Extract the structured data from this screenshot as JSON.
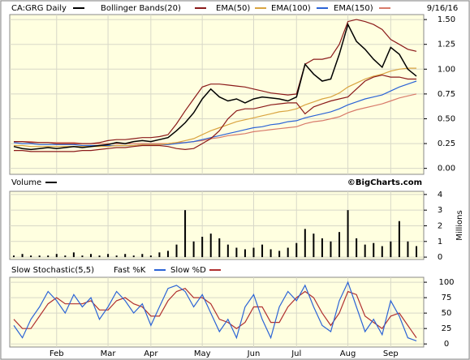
{
  "chart_data": [
    {
      "type": "line",
      "title": "CA:GRG Daily",
      "date": "9/16/16",
      "ylim": [
        -0.06,
        1.55
      ],
      "yticks": [
        {
          "value": 0,
          "label": "0.00"
        },
        {
          "value": 0.25,
          "label": "0.25"
        },
        {
          "value": 0.5,
          "label": "0.50"
        },
        {
          "value": 0.75,
          "label": "0.75"
        },
        {
          "value": 1,
          "label": "1.00"
        },
        {
          "value": 1.25,
          "label": "1.25"
        },
        {
          "value": 1.5,
          "label": "1.50"
        }
      ],
      "grid": true,
      "series": [
        {
          "name": "CA:GRG Daily",
          "color": "#000000",
          "values": [
            0.22,
            0.2,
            0.19,
            0.2,
            0.21,
            0.2,
            0.21,
            0.22,
            0.21,
            0.22,
            0.23,
            0.24,
            0.26,
            0.25,
            0.27,
            0.28,
            0.27,
            0.29,
            0.31,
            0.38,
            0.46,
            0.56,
            0.7,
            0.8,
            0.72,
            0.68,
            0.7,
            0.66,
            0.7,
            0.72,
            0.71,
            0.7,
            0.68,
            0.72,
            1.05,
            0.95,
            0.88,
            0.9,
            1.15,
            1.45,
            1.28,
            1.2,
            1.1,
            1.02,
            1.22,
            1.15,
            1.0,
            0.93
          ]
        },
        {
          "name": "Bollinger Bands(20)",
          "color": "#8b1a1a",
          "values": [
            0.27,
            0.27,
            0.26,
            0.26,
            0.26,
            0.25,
            0.25,
            0.25,
            0.25,
            0.25,
            0.26,
            0.28,
            0.29,
            0.29,
            0.3,
            0.31,
            0.31,
            0.32,
            0.34,
            0.45,
            0.58,
            0.7,
            0.82,
            0.85,
            0.85,
            0.84,
            0.83,
            0.82,
            0.8,
            0.78,
            0.76,
            0.75,
            0.74,
            0.75,
            1.05,
            1.1,
            1.1,
            1.12,
            1.25,
            1.48,
            1.5,
            1.48,
            1.45,
            1.4,
            1.3,
            1.25,
            1.2,
            1.18
          ],
          "lower_values": [
            0.18,
            0.18,
            0.17,
            0.17,
            0.17,
            0.17,
            0.17,
            0.17,
            0.18,
            0.18,
            0.19,
            0.2,
            0.21,
            0.21,
            0.22,
            0.23,
            0.23,
            0.23,
            0.22,
            0.2,
            0.19,
            0.2,
            0.25,
            0.3,
            0.38,
            0.5,
            0.58,
            0.6,
            0.6,
            0.62,
            0.64,
            0.65,
            0.66,
            0.66,
            0.55,
            0.62,
            0.65,
            0.68,
            0.7,
            0.72,
            0.8,
            0.88,
            0.92,
            0.94,
            0.92,
            0.92,
            0.9,
            0.9
          ]
        },
        {
          "name": "EMA(50)",
          "color": "#d9a440",
          "values": [
            0.23,
            0.23,
            0.22,
            0.22,
            0.22,
            0.22,
            0.22,
            0.22,
            0.22,
            0.22,
            0.22,
            0.22,
            0.23,
            0.23,
            0.23,
            0.24,
            0.24,
            0.24,
            0.25,
            0.26,
            0.28,
            0.3,
            0.34,
            0.38,
            0.41,
            0.44,
            0.47,
            0.49,
            0.51,
            0.53,
            0.55,
            0.57,
            0.58,
            0.6,
            0.64,
            0.67,
            0.7,
            0.72,
            0.76,
            0.82,
            0.86,
            0.9,
            0.93,
            0.95,
            0.98,
            1.0,
            1.01,
            1.01
          ]
        },
        {
          "name": "EMA(100)",
          "color": "#2b63d6",
          "values": [
            0.26,
            0.25,
            0.25,
            0.24,
            0.24,
            0.24,
            0.24,
            0.24,
            0.23,
            0.23,
            0.23,
            0.23,
            0.23,
            0.23,
            0.23,
            0.24,
            0.24,
            0.24,
            0.24,
            0.25,
            0.26,
            0.27,
            0.29,
            0.31,
            0.33,
            0.35,
            0.37,
            0.39,
            0.41,
            0.42,
            0.44,
            0.45,
            0.47,
            0.48,
            0.51,
            0.53,
            0.55,
            0.57,
            0.6,
            0.64,
            0.67,
            0.7,
            0.72,
            0.74,
            0.78,
            0.82,
            0.85,
            0.88
          ]
        },
        {
          "name": "EMA(150)",
          "color": "#d87a6a",
          "values": [
            0.27,
            0.27,
            0.27,
            0.26,
            0.26,
            0.26,
            0.26,
            0.26,
            0.25,
            0.25,
            0.25,
            0.25,
            0.25,
            0.25,
            0.25,
            0.25,
            0.25,
            0.25,
            0.25,
            0.26,
            0.26,
            0.27,
            0.28,
            0.3,
            0.31,
            0.33,
            0.34,
            0.35,
            0.37,
            0.38,
            0.39,
            0.4,
            0.41,
            0.42,
            0.45,
            0.47,
            0.48,
            0.5,
            0.52,
            0.56,
            0.59,
            0.61,
            0.63,
            0.65,
            0.68,
            0.71,
            0.73,
            0.75
          ]
        }
      ]
    },
    {
      "type": "bar",
      "title": "Volume",
      "credit": "©BigCharts.com",
      "y_label": "Millions",
      "color": "#000000",
      "ylim": [
        -0.15,
        4.2
      ],
      "yticks": [
        0,
        1,
        2,
        3,
        4
      ],
      "grid": true,
      "values": [
        0.1,
        0.2,
        0.1,
        0.1,
        0.1,
        0.2,
        0.1,
        0.3,
        0.1,
        0.2,
        0.1,
        0.2,
        0.1,
        0.2,
        0.1,
        0.2,
        0.1,
        0.3,
        0.4,
        0.8,
        3.0,
        1.0,
        1.3,
        1.5,
        1.2,
        0.8,
        0.6,
        0.5,
        0.6,
        0.8,
        0.5,
        0.4,
        0.6,
        0.9,
        1.8,
        1.5,
        1.2,
        1.0,
        1.6,
        3.0,
        1.2,
        0.8,
        0.9,
        0.7,
        1.0,
        2.3,
        1.0,
        0.7
      ]
    },
    {
      "type": "line",
      "title": "Slow Stochastic(5,5)",
      "ylim": [
        -5,
        108
      ],
      "yticks": [
        0,
        25,
        50,
        75,
        100
      ],
      "grid": true,
      "categories": [
        null,
        null,
        null,
        null,
        null,
        "Feb",
        null,
        null,
        null,
        null,
        null,
        "Mar",
        null,
        null,
        null,
        null,
        "Apr",
        null,
        null,
        null,
        null,
        null,
        "May",
        null,
        null,
        null,
        null,
        null,
        "Jun",
        null,
        null,
        null,
        null,
        "Jul",
        null,
        null,
        null,
        null,
        null,
        "Aug",
        null,
        null,
        null,
        null,
        "Sep",
        null,
        null,
        null
      ],
      "series": [
        {
          "name": "Fast %K",
          "color": "#2b63d6",
          "values": [
            30,
            10,
            40,
            60,
            85,
            70,
            50,
            80,
            60,
            75,
            40,
            60,
            85,
            70,
            50,
            65,
            30,
            60,
            90,
            95,
            85,
            60,
            80,
            50,
            20,
            40,
            10,
            60,
            80,
            40,
            10,
            60,
            85,
            70,
            95,
            60,
            30,
            20,
            70,
            100,
            60,
            20,
            40,
            15,
            70,
            45,
            10,
            5
          ]
        },
        {
          "name": "Slow %D",
          "color": "#b03030",
          "values": [
            40,
            25,
            25,
            45,
            65,
            75,
            65,
            65,
            65,
            70,
            55,
            55,
            70,
            75,
            65,
            60,
            45,
            45,
            70,
            85,
            90,
            75,
            75,
            65,
            40,
            35,
            25,
            35,
            60,
            60,
            35,
            35,
            60,
            75,
            85,
            75,
            50,
            30,
            50,
            85,
            80,
            45,
            35,
            25,
            45,
            50,
            30,
            10
          ]
        }
      ]
    }
  ]
}
